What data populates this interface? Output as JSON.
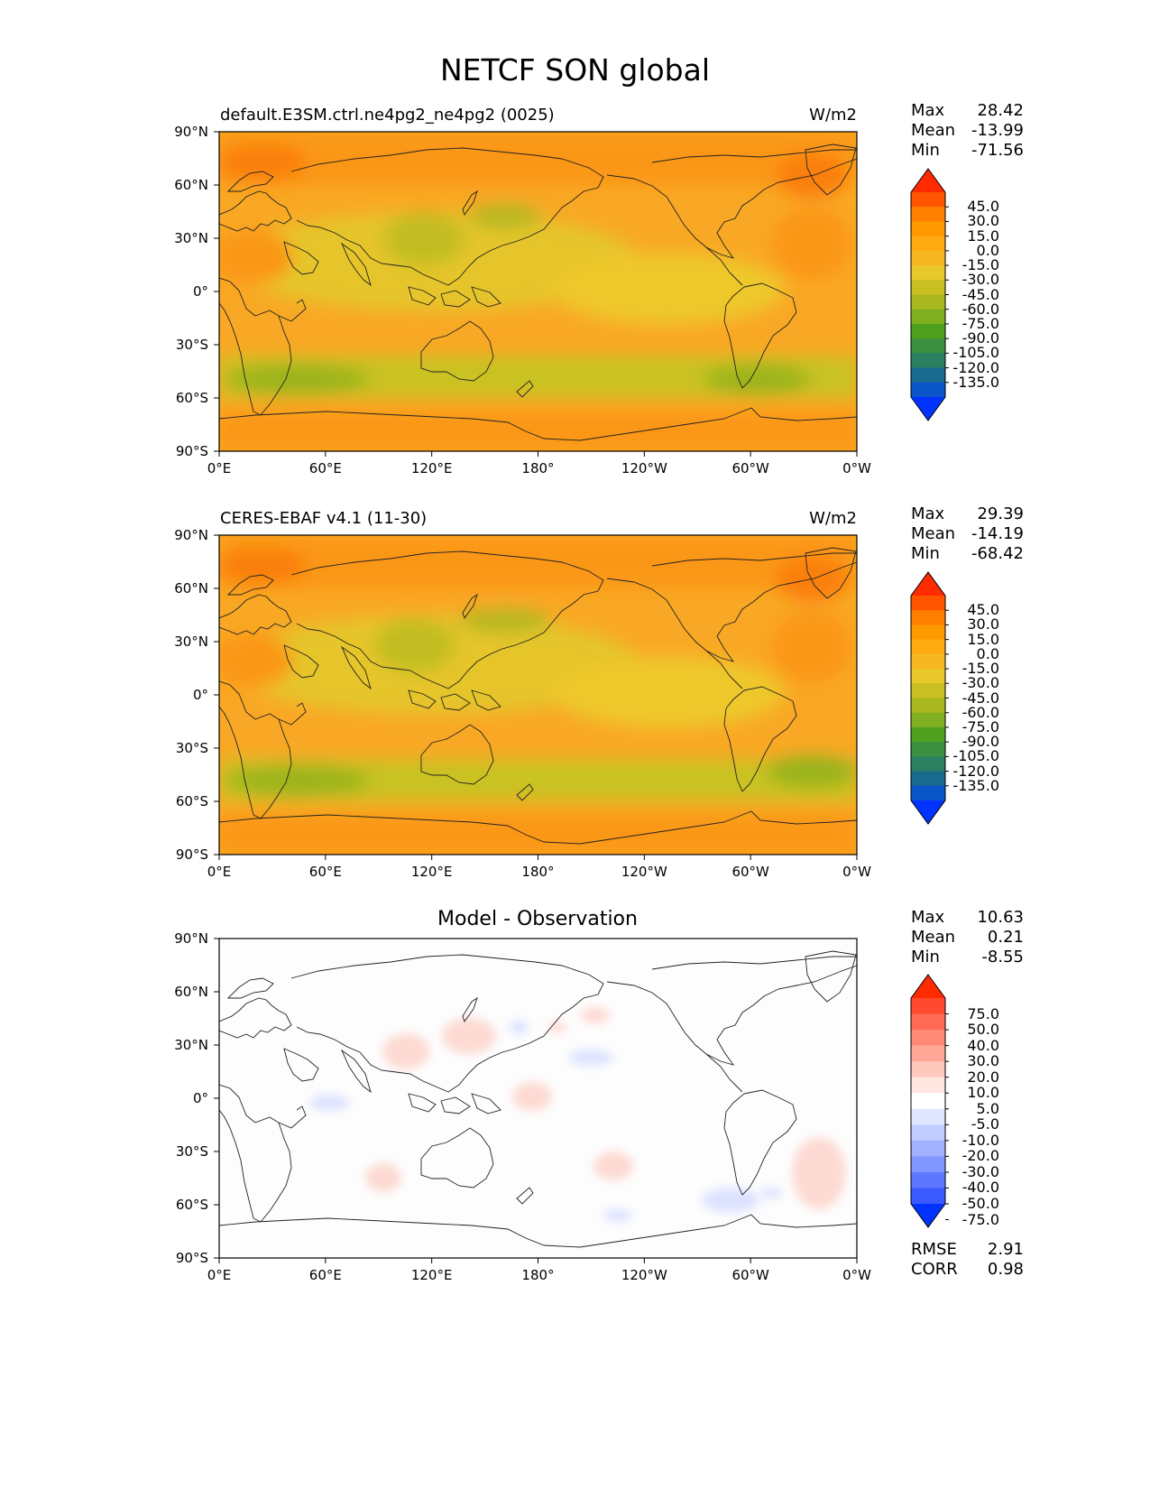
{
  "title": "NETCF SON global",
  "x_ticks": [
    "0°E",
    "60°E",
    "120°E",
    "180°",
    "120°W",
    "60°W",
    "0°W"
  ],
  "y_ticks": [
    "90°N",
    "60°N",
    "30°N",
    "0°",
    "30°S",
    "60°S",
    "90°S"
  ],
  "panels": [
    {
      "title": "default.E3SM.ctrl.ne4pg2_ne4pg2 (0025)",
      "units": "W/m2",
      "stats": {
        "max_label": "Max",
        "max": "28.42",
        "mean_label": "Mean",
        "mean": "-13.99",
        "min_label": "Min",
        "min": "-71.56"
      }
    },
    {
      "title": "CERES-EBAF v4.1 (11-30)",
      "units": "W/m2",
      "stats": {
        "max_label": "Max",
        "max": "29.39",
        "mean_label": "Mean",
        "mean": "-14.19",
        "min_label": "Min",
        "min": "-68.42"
      }
    },
    {
      "title": "Model - Observation",
      "units": "",
      "stats": {
        "max_label": "Max",
        "max": "10.63",
        "mean_label": "Mean",
        "mean": "0.21",
        "min_label": "Min",
        "min": "-8.55"
      },
      "extra": {
        "rmse_label": "RMSE",
        "rmse": "2.91",
        "corr_label": "CORR",
        "corr": "0.98"
      }
    }
  ],
  "colorbar_main": {
    "labels": [
      "45.0",
      "30.0",
      "15.0",
      "0.0",
      "-15.0",
      "-30.0",
      "-45.0",
      "-60.0",
      "-75.0",
      "-90.0",
      "-105.0",
      "-120.0",
      "-135.0"
    ],
    "colors": [
      "#ff2a00",
      "#ff5500",
      "#ff7f00",
      "#ff9900",
      "#ffaa11",
      "#f6b820",
      "#e8c82a",
      "#c8c022",
      "#a8b81e",
      "#80b020",
      "#50a020",
      "#3a9040",
      "#2a8060",
      "#1a6a90",
      "#0a55c8",
      "#0033ff"
    ]
  },
  "colorbar_diff": {
    "labels": [
      "75.0",
      "50.0",
      "40.0",
      "30.0",
      "20.0",
      "10.0",
      "5.0",
      "-5.0",
      "-10.0",
      "-20.0",
      "-30.0",
      "-40.0",
      "-50.0",
      "-75.0"
    ],
    "colors": [
      "#ff2a00",
      "#ff4a30",
      "#ff6a55",
      "#ff8a78",
      "#ffa898",
      "#ffc8bc",
      "#ffe6e0",
      "#ffffff",
      "#dfe6ff",
      "#c2cdff",
      "#a2b2ff",
      "#8296ff",
      "#5d78ff",
      "#3a5aff",
      "#0033ff"
    ]
  },
  "chart_data": [
    {
      "type": "heatmap",
      "title": "default.E3SM.ctrl.ne4pg2_ne4pg2 (0025)",
      "units": "W/m2",
      "xlim": [
        0,
        360
      ],
      "ylim": [
        -90,
        90
      ],
      "max": 28.42,
      "mean": -13.99,
      "min": -71.56,
      "colorbar_levels": [
        -135,
        -120,
        -105,
        -90,
        -75,
        -60,
        -45,
        -30,
        -15,
        0,
        15,
        30,
        45
      ]
    },
    {
      "type": "heatmap",
      "title": "CERES-EBAF v4.1 (11-30)",
      "units": "W/m2",
      "xlim": [
        0,
        360
      ],
      "ylim": [
        -90,
        90
      ],
      "max": 29.39,
      "mean": -14.19,
      "min": -68.42,
      "colorbar_levels": [
        -135,
        -120,
        -105,
        -90,
        -75,
        -60,
        -45,
        -30,
        -15,
        0,
        15,
        30,
        45
      ]
    },
    {
      "type": "heatmap",
      "title": "Model - Observation",
      "xlim": [
        0,
        360
      ],
      "ylim": [
        -90,
        90
      ],
      "max": 10.63,
      "mean": 0.21,
      "min": -8.55,
      "rmse": 2.91,
      "corr": 0.98,
      "colorbar_levels": [
        -75,
        -50,
        -40,
        -30,
        -20,
        -10,
        -5,
        5,
        10,
        20,
        30,
        40,
        50,
        75
      ]
    }
  ]
}
